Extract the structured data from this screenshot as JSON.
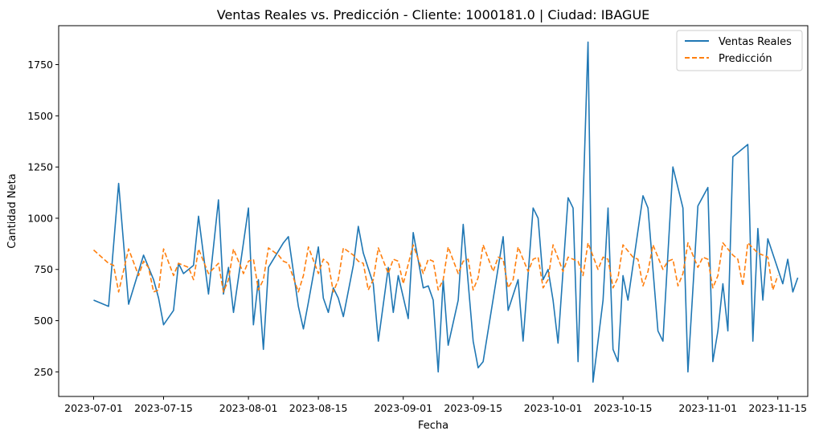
{
  "chart_data": {
    "type": "line",
    "title": "Ventas Reales vs. Predicción - Cliente: 1000181.0 | Ciudad: IBAGUE",
    "xlabel": "Fecha",
    "ylabel": "Cantidad Neta",
    "xlim": [
      "2023-06-24",
      "2023-11-21"
    ],
    "ylim": [
      130,
      1940
    ],
    "x_ticks": [
      "2023-07-01",
      "2023-07-15",
      "2023-08-01",
      "2023-08-15",
      "2023-09-01",
      "2023-09-15",
      "2023-10-01",
      "2023-10-15",
      "2023-11-01",
      "2023-11-15"
    ],
    "y_ticks": [
      250,
      500,
      750,
      1000,
      1250,
      1500,
      1750
    ],
    "grid": false,
    "legend_position": "upper right",
    "series": [
      {
        "name": "Ventas Reales",
        "color": "#1f77b4",
        "style": "solid",
        "points": [
          [
            "2023-07-01",
            600
          ],
          [
            "2023-07-04",
            570
          ],
          [
            "2023-07-06",
            1170
          ],
          [
            "2023-07-08",
            580
          ],
          [
            "2023-07-11",
            820
          ],
          [
            "2023-07-13",
            700
          ],
          [
            "2023-07-14",
            610
          ],
          [
            "2023-07-15",
            480
          ],
          [
            "2023-07-17",
            550
          ],
          [
            "2023-07-18",
            780
          ],
          [
            "2023-07-19",
            730
          ],
          [
            "2023-07-21",
            770
          ],
          [
            "2023-07-22",
            1010
          ],
          [
            "2023-07-24",
            630
          ],
          [
            "2023-07-26",
            1090
          ],
          [
            "2023-07-27",
            630
          ],
          [
            "2023-07-28",
            760
          ],
          [
            "2023-07-29",
            540
          ],
          [
            "2023-08-01",
            1050
          ],
          [
            "2023-08-02",
            480
          ],
          [
            "2023-08-03",
            700
          ],
          [
            "2023-08-04",
            360
          ],
          [
            "2023-08-05",
            760
          ],
          [
            "2023-08-08",
            880
          ],
          [
            "2023-08-09",
            910
          ],
          [
            "2023-08-11",
            570
          ],
          [
            "2023-08-12",
            460
          ],
          [
            "2023-08-13",
            590
          ],
          [
            "2023-08-15",
            860
          ],
          [
            "2023-08-16",
            610
          ],
          [
            "2023-08-17",
            540
          ],
          [
            "2023-08-18",
            660
          ],
          [
            "2023-08-19",
            610
          ],
          [
            "2023-08-20",
            520
          ],
          [
            "2023-08-22",
            770
          ],
          [
            "2023-08-23",
            960
          ],
          [
            "2023-08-24",
            830
          ],
          [
            "2023-08-26",
            680
          ],
          [
            "2023-08-27",
            400
          ],
          [
            "2023-08-29",
            760
          ],
          [
            "2023-08-30",
            540
          ],
          [
            "2023-08-31",
            720
          ],
          [
            "2023-09-02",
            510
          ],
          [
            "2023-09-03",
            930
          ],
          [
            "2023-09-05",
            660
          ],
          [
            "2023-09-06",
            670
          ],
          [
            "2023-09-07",
            600
          ],
          [
            "2023-09-08",
            250
          ],
          [
            "2023-09-09",
            700
          ],
          [
            "2023-09-10",
            380
          ],
          [
            "2023-09-12",
            600
          ],
          [
            "2023-09-13",
            970
          ],
          [
            "2023-09-15",
            400
          ],
          [
            "2023-09-16",
            270
          ],
          [
            "2023-09-17",
            300
          ],
          [
            "2023-09-21",
            910
          ],
          [
            "2023-09-22",
            550
          ],
          [
            "2023-09-24",
            700
          ],
          [
            "2023-09-25",
            400
          ],
          [
            "2023-09-27",
            1050
          ],
          [
            "2023-09-28",
            1000
          ],
          [
            "2023-09-29",
            700
          ],
          [
            "2023-09-30",
            750
          ],
          [
            "2023-10-01",
            600
          ],
          [
            "2023-10-02",
            390
          ],
          [
            "2023-10-04",
            1100
          ],
          [
            "2023-10-05",
            1050
          ],
          [
            "2023-10-06",
            300
          ],
          [
            "2023-10-08",
            1860
          ],
          [
            "2023-10-09",
            200
          ],
          [
            "2023-10-11",
            600
          ],
          [
            "2023-10-12",
            1050
          ],
          [
            "2023-10-13",
            360
          ],
          [
            "2023-10-14",
            300
          ],
          [
            "2023-10-15",
            720
          ],
          [
            "2023-10-16",
            600
          ],
          [
            "2023-10-19",
            1110
          ],
          [
            "2023-10-20",
            1050
          ],
          [
            "2023-10-22",
            450
          ],
          [
            "2023-10-23",
            400
          ],
          [
            "2023-10-25",
            1250
          ],
          [
            "2023-10-27",
            1050
          ],
          [
            "2023-10-28",
            250
          ],
          [
            "2023-10-30",
            1060
          ],
          [
            "2023-11-01",
            1150
          ],
          [
            "2023-11-02",
            300
          ],
          [
            "2023-11-03",
            450
          ],
          [
            "2023-11-04",
            680
          ],
          [
            "2023-11-05",
            450
          ],
          [
            "2023-11-06",
            1300
          ],
          [
            "2023-11-09",
            1360
          ],
          [
            "2023-11-10",
            400
          ],
          [
            "2023-11-11",
            950
          ],
          [
            "2023-11-12",
            600
          ],
          [
            "2023-11-13",
            900
          ],
          [
            "2023-11-16",
            680
          ],
          [
            "2023-11-17",
            800
          ],
          [
            "2023-11-18",
            640
          ],
          [
            "2023-11-19",
            710
          ]
        ]
      },
      {
        "name": "Predicción",
        "color": "#ff7f0e",
        "style": "dashed",
        "points": [
          [
            "2023-07-01",
            845
          ],
          [
            "2023-07-04",
            780
          ],
          [
            "2023-07-05",
            770
          ],
          [
            "2023-07-06",
            640
          ],
          [
            "2023-07-08",
            850
          ],
          [
            "2023-07-10",
            720
          ],
          [
            "2023-07-11",
            790
          ],
          [
            "2023-07-12",
            760
          ],
          [
            "2023-07-13",
            640
          ],
          [
            "2023-07-14",
            650
          ],
          [
            "2023-07-15",
            850
          ],
          [
            "2023-07-17",
            720
          ],
          [
            "2023-07-18",
            780
          ],
          [
            "2023-07-20",
            760
          ],
          [
            "2023-07-21",
            700
          ],
          [
            "2023-07-22",
            850
          ],
          [
            "2023-07-24",
            730
          ],
          [
            "2023-07-26",
            780
          ],
          [
            "2023-07-27",
            640
          ],
          [
            "2023-07-28",
            700
          ],
          [
            "2023-07-29",
            850
          ],
          [
            "2023-07-31",
            730
          ],
          [
            "2023-08-01",
            790
          ],
          [
            "2023-08-02",
            800
          ],
          [
            "2023-08-03",
            650
          ],
          [
            "2023-08-04",
            700
          ],
          [
            "2023-08-05",
            855
          ],
          [
            "2023-08-07",
            820
          ],
          [
            "2023-08-08",
            790
          ],
          [
            "2023-08-09",
            780
          ],
          [
            "2023-08-11",
            640
          ],
          [
            "2023-08-12",
            720
          ],
          [
            "2023-08-13",
            860
          ],
          [
            "2023-08-15",
            730
          ],
          [
            "2023-08-16",
            800
          ],
          [
            "2023-08-17",
            780
          ],
          [
            "2023-08-18",
            640
          ],
          [
            "2023-08-19",
            700
          ],
          [
            "2023-08-20",
            855
          ],
          [
            "2023-08-22",
            820
          ],
          [
            "2023-08-23",
            790
          ],
          [
            "2023-08-24",
            780
          ],
          [
            "2023-08-25",
            650
          ],
          [
            "2023-08-26",
            700
          ],
          [
            "2023-08-27",
            855
          ],
          [
            "2023-08-29",
            730
          ],
          [
            "2023-08-30",
            800
          ],
          [
            "2023-08-31",
            790
          ],
          [
            "2023-09-01",
            680
          ],
          [
            "2023-09-03",
            870
          ],
          [
            "2023-09-05",
            730
          ],
          [
            "2023-09-06",
            800
          ],
          [
            "2023-09-07",
            790
          ],
          [
            "2023-09-08",
            650
          ],
          [
            "2023-09-09",
            700
          ],
          [
            "2023-09-10",
            860
          ],
          [
            "2023-09-12",
            730
          ],
          [
            "2023-09-13",
            790
          ],
          [
            "2023-09-14",
            800
          ],
          [
            "2023-09-15",
            650
          ],
          [
            "2023-09-16",
            710
          ],
          [
            "2023-09-17",
            870
          ],
          [
            "2023-09-19",
            740
          ],
          [
            "2023-09-20",
            810
          ],
          [
            "2023-09-21",
            800
          ],
          [
            "2023-09-22",
            660
          ],
          [
            "2023-09-23",
            700
          ],
          [
            "2023-09-24",
            860
          ],
          [
            "2023-09-26",
            740
          ],
          [
            "2023-09-27",
            800
          ],
          [
            "2023-09-28",
            810
          ],
          [
            "2023-09-29",
            660
          ],
          [
            "2023-09-30",
            700
          ],
          [
            "2023-10-01",
            870
          ],
          [
            "2023-10-03",
            740
          ],
          [
            "2023-10-04",
            810
          ],
          [
            "2023-10-05",
            800
          ],
          [
            "2023-10-06",
            790
          ],
          [
            "2023-10-07",
            720
          ],
          [
            "2023-10-08",
            880
          ],
          [
            "2023-10-10",
            750
          ],
          [
            "2023-10-11",
            810
          ],
          [
            "2023-10-12",
            800
          ],
          [
            "2023-10-13",
            660
          ],
          [
            "2023-10-14",
            710
          ],
          [
            "2023-10-15",
            870
          ],
          [
            "2023-10-17",
            810
          ],
          [
            "2023-10-18",
            800
          ],
          [
            "2023-10-19",
            670
          ],
          [
            "2023-10-20",
            740
          ],
          [
            "2023-10-21",
            870
          ],
          [
            "2023-10-23",
            750
          ],
          [
            "2023-10-24",
            790
          ],
          [
            "2023-10-25",
            800
          ],
          [
            "2023-10-26",
            670
          ],
          [
            "2023-10-27",
            730
          ],
          [
            "2023-10-28",
            880
          ],
          [
            "2023-10-30",
            760
          ],
          [
            "2023-10-31",
            810
          ],
          [
            "2023-11-01",
            800
          ],
          [
            "2023-11-02",
            660
          ],
          [
            "2023-11-03",
            720
          ],
          [
            "2023-11-04",
            880
          ],
          [
            "2023-11-06",
            820
          ],
          [
            "2023-11-07",
            800
          ],
          [
            "2023-11-08",
            670
          ],
          [
            "2023-11-09",
            880
          ],
          [
            "2023-11-11",
            830
          ],
          [
            "2023-11-13",
            810
          ],
          [
            "2023-11-14",
            650
          ],
          [
            "2023-11-15",
            720
          ]
        ]
      }
    ]
  }
}
